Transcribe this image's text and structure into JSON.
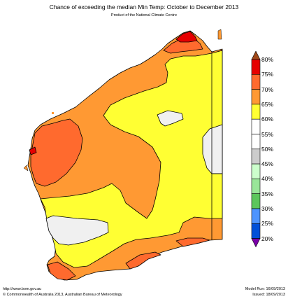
{
  "title": "Chance of exceeding the median Min Temp: October to December 2013",
  "subtitle": "Product of the National Climate Centre",
  "legend": {
    "labels": [
      "80%",
      "75%",
      "70%",
      "65%",
      "60%",
      "55%",
      "50%",
      "45%",
      "40%",
      "35%",
      "30%",
      "25%",
      "20%"
    ],
    "bands": [
      {
        "range": "75-80%",
        "color": "#e60000"
      },
      {
        "range": "70-75%",
        "color": "#ff6a2e"
      },
      {
        "range": "65-70%",
        "color": "#ff9933"
      },
      {
        "range": "60-65%",
        "color": "#ffff33"
      },
      {
        "range": "55-60%",
        "color": "#ffffff"
      },
      {
        "range": "50-55%",
        "color": "#ffffff"
      },
      {
        "range": "45-50%",
        "color": "#cccccc"
      },
      {
        "range": "40-45%",
        "color": "#ccffcc"
      },
      {
        "range": "35-40%",
        "color": "#99e699"
      },
      {
        "range": "30-35%",
        "color": "#5cc65c"
      },
      {
        "range": "25-30%",
        "color": "#4d94ff"
      },
      {
        "range": "20-25%",
        "color": "#0050d8"
      }
    ],
    "top_arrow_color": "#a04a1a",
    "bottom_arrow_color": "#7a00a8"
  },
  "footer": {
    "url": "http://www.bom.gov.au",
    "copyright": "©  Commonwealth of Australia 2013, Australian Bureau of Meteorology",
    "model_run": "Model Run: 16/09/2013",
    "issued": "Issued: 18/09/2013"
  }
}
